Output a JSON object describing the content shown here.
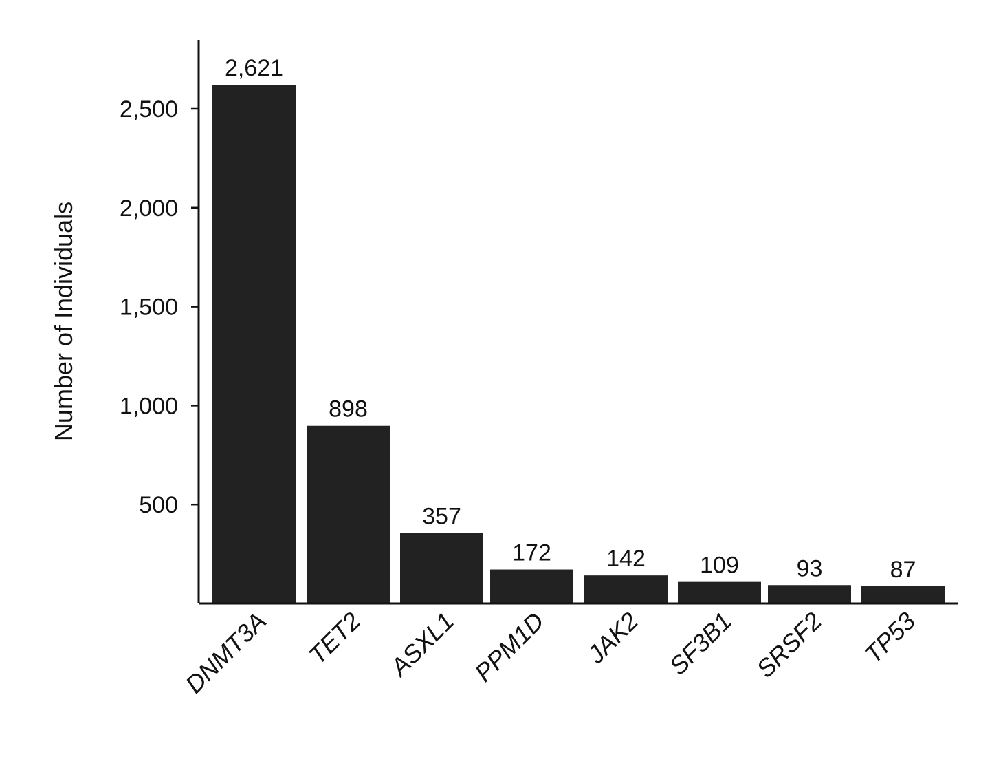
{
  "chart_data": {
    "type": "bar",
    "title": "",
    "xlabel": "",
    "ylabel": "Number of Individuals",
    "categories": [
      "DNMT3A",
      "TET2",
      "ASXL1",
      "PPM1D",
      "JAK2",
      "SF3B1",
      "SRSF2",
      "TP53"
    ],
    "values": [
      2621,
      898,
      357,
      172,
      142,
      109,
      93,
      87
    ],
    "value_labels": [
      "2,621",
      "898",
      "357",
      "172",
      "142",
      "109",
      "93",
      "87"
    ],
    "yticks": [
      500,
      1000,
      1500,
      2000,
      2500
    ],
    "ytick_labels": [
      "500",
      "1,000",
      "1,500",
      "2,000",
      "2,500"
    ],
    "ylim": [
      0,
      2850
    ],
    "grid": false,
    "legend": "none",
    "bar_color": "#222222",
    "category_label_style": "italic, rotated"
  }
}
